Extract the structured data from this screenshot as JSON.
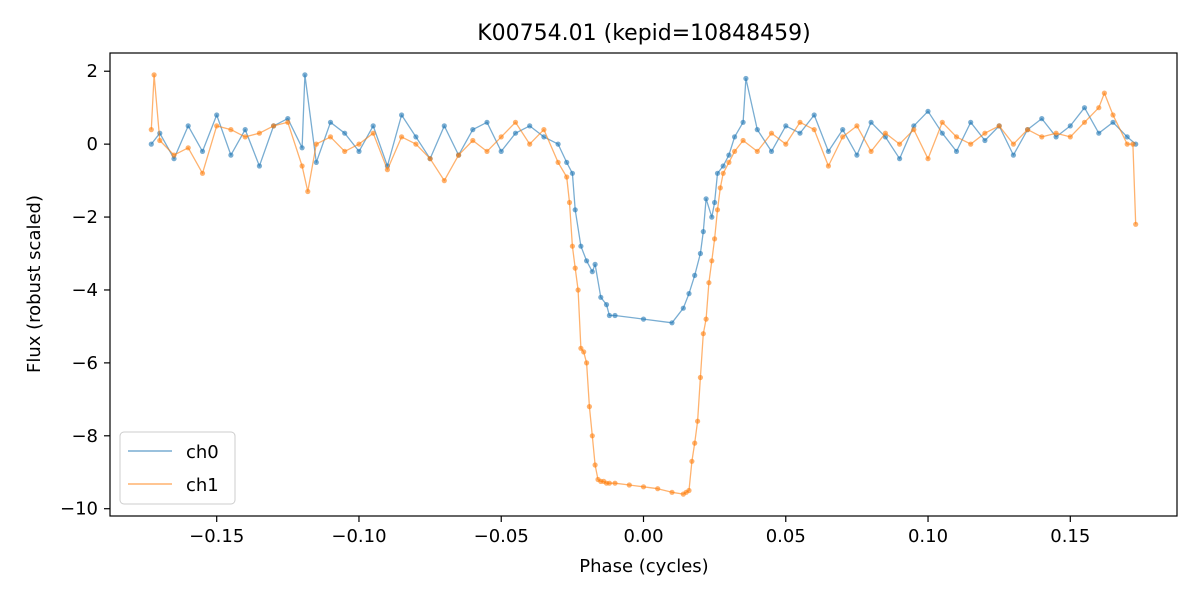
{
  "chart_data": {
    "type": "line",
    "title": "K00754.01 (kepid=10848459)",
    "xlabel": "Phase (cycles)",
    "ylabel": "Flux (robust scaled)",
    "xlim": [
      -0.1875,
      0.1875
    ],
    "ylim": [
      -10.2,
      2.5
    ],
    "xticks": [
      -0.15,
      -0.1,
      -0.05,
      0.0,
      0.05,
      0.1,
      0.15
    ],
    "xtick_labels": [
      "−0.15",
      "−0.10",
      "−0.05",
      "0.00",
      "0.05",
      "0.10",
      "0.15"
    ],
    "yticks": [
      2,
      0,
      -2,
      -4,
      -6,
      -8,
      -10
    ],
    "ytick_labels": [
      "2",
      "0",
      "−2",
      "−4",
      "−6",
      "−8",
      "−10"
    ],
    "grid": false,
    "legend_position": "lower-left",
    "series": [
      {
        "name": "ch0",
        "color": "#1f77b4",
        "x": [
          -0.173,
          -0.17,
          -0.165,
          -0.16,
          -0.155,
          -0.15,
          -0.145,
          -0.14,
          -0.135,
          -0.13,
          -0.125,
          -0.12,
          -0.119,
          -0.115,
          -0.11,
          -0.105,
          -0.1,
          -0.095,
          -0.09,
          -0.085,
          -0.08,
          -0.075,
          -0.07,
          -0.065,
          -0.06,
          -0.055,
          -0.05,
          -0.045,
          -0.04,
          -0.035,
          -0.03,
          -0.027,
          -0.025,
          -0.024,
          -0.022,
          -0.02,
          -0.018,
          -0.017,
          -0.015,
          -0.013,
          -0.012,
          -0.01,
          0.0,
          0.01,
          0.014,
          0.016,
          0.018,
          0.02,
          0.021,
          0.022,
          0.024,
          0.025,
          0.026,
          0.028,
          0.03,
          0.032,
          0.035,
          0.036,
          0.04,
          0.045,
          0.05,
          0.055,
          0.06,
          0.065,
          0.07,
          0.075,
          0.08,
          0.085,
          0.09,
          0.095,
          0.1,
          0.105,
          0.11,
          0.115,
          0.12,
          0.125,
          0.13,
          0.135,
          0.14,
          0.145,
          0.15,
          0.155,
          0.16,
          0.165,
          0.17,
          0.173
        ],
        "values": [
          0.0,
          0.3,
          -0.4,
          0.5,
          -0.2,
          0.8,
          -0.3,
          0.4,
          -0.6,
          0.5,
          0.7,
          -0.1,
          1.9,
          -0.5,
          0.6,
          0.3,
          -0.2,
          0.5,
          -0.6,
          0.8,
          0.2,
          -0.4,
          0.5,
          -0.3,
          0.4,
          0.6,
          -0.2,
          0.3,
          0.5,
          0.2,
          0.0,
          -0.5,
          -0.8,
          -1.8,
          -2.8,
          -3.2,
          -3.5,
          -3.3,
          -4.2,
          -4.4,
          -4.7,
          -4.7,
          -4.8,
          -4.9,
          -4.5,
          -4.1,
          -3.6,
          -3.0,
          -2.4,
          -1.5,
          -2.0,
          -1.6,
          -0.8,
          -0.6,
          -0.3,
          0.2,
          0.6,
          1.8,
          0.4,
          -0.2,
          0.5,
          0.3,
          0.8,
          -0.2,
          0.4,
          -0.3,
          0.6,
          0.2,
          -0.4,
          0.5,
          0.9,
          0.3,
          -0.2,
          0.6,
          0.1,
          0.5,
          -0.3,
          0.4,
          0.7,
          0.2,
          0.5,
          1.0,
          0.3,
          0.6,
          0.2,
          0.0
        ]
      },
      {
        "name": "ch1",
        "color": "#ff7f0e",
        "x": [
          -0.173,
          -0.172,
          -0.17,
          -0.165,
          -0.16,
          -0.155,
          -0.15,
          -0.145,
          -0.14,
          -0.135,
          -0.13,
          -0.125,
          -0.12,
          -0.118,
          -0.115,
          -0.11,
          -0.105,
          -0.1,
          -0.095,
          -0.09,
          -0.085,
          -0.08,
          -0.075,
          -0.07,
          -0.065,
          -0.06,
          -0.055,
          -0.05,
          -0.045,
          -0.04,
          -0.035,
          -0.03,
          -0.027,
          -0.026,
          -0.025,
          -0.024,
          -0.023,
          -0.022,
          -0.021,
          -0.02,
          -0.019,
          -0.018,
          -0.017,
          -0.016,
          -0.015,
          -0.014,
          -0.013,
          -0.012,
          -0.01,
          -0.005,
          0.0,
          0.005,
          0.01,
          0.014,
          0.015,
          0.016,
          0.017,
          0.018,
          0.019,
          0.02,
          0.021,
          0.022,
          0.023,
          0.024,
          0.025,
          0.026,
          0.027,
          0.028,
          0.03,
          0.032,
          0.035,
          0.04,
          0.045,
          0.05,
          0.055,
          0.06,
          0.065,
          0.07,
          0.075,
          0.08,
          0.085,
          0.09,
          0.095,
          0.1,
          0.105,
          0.11,
          0.115,
          0.12,
          0.125,
          0.13,
          0.135,
          0.14,
          0.145,
          0.15,
          0.155,
          0.16,
          0.162,
          0.165,
          0.17,
          0.172,
          0.173
        ],
        "values": [
          0.4,
          1.9,
          0.1,
          -0.3,
          -0.1,
          -0.8,
          0.5,
          0.4,
          0.2,
          0.3,
          0.5,
          0.6,
          -0.6,
          -1.3,
          0.0,
          0.2,
          -0.2,
          0.0,
          0.3,
          -0.7,
          0.2,
          0.0,
          -0.4,
          -1.0,
          -0.3,
          0.1,
          -0.2,
          0.2,
          0.6,
          0.0,
          0.4,
          -0.5,
          -0.9,
          -1.6,
          -2.8,
          -3.4,
          -4.0,
          -5.6,
          -5.7,
          -6.0,
          -7.2,
          -8.0,
          -8.8,
          -9.2,
          -9.25,
          -9.25,
          -9.3,
          -9.3,
          -9.3,
          -9.35,
          -9.4,
          -9.45,
          -9.55,
          -9.6,
          -9.55,
          -9.5,
          -8.7,
          -8.2,
          -7.6,
          -6.4,
          -5.2,
          -4.8,
          -3.8,
          -3.2,
          -2.6,
          -1.8,
          -1.2,
          -0.8,
          -0.5,
          -0.2,
          0.1,
          -0.2,
          0.3,
          0.0,
          0.6,
          0.4,
          -0.6,
          0.2,
          0.5,
          -0.2,
          0.3,
          0.0,
          0.4,
          -0.4,
          0.6,
          0.2,
          0.0,
          0.3,
          0.5,
          0.0,
          0.4,
          0.2,
          0.3,
          0.2,
          0.6,
          1.0,
          1.4,
          0.8,
          0.0,
          0.0,
          -2.2
        ]
      }
    ]
  }
}
